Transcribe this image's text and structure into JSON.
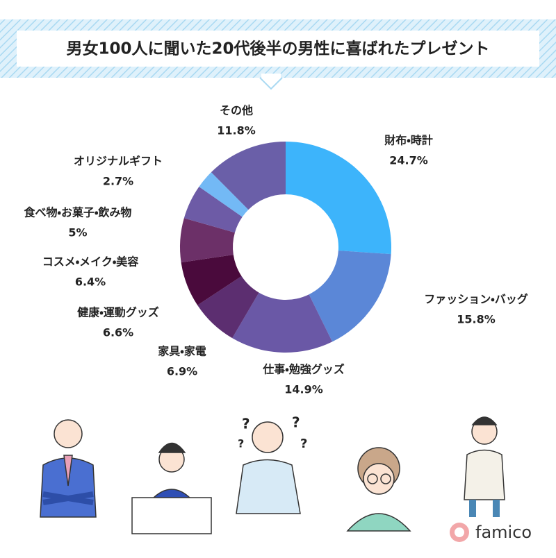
{
  "chart_data": {
    "type": "donut",
    "title": "男女100人に聞いた20代後半の男性に喜ばれたプレゼント",
    "categories": [
      "財布・時計",
      "ファッション・バッグ",
      "仕事・勉強グッズ",
      "家具・家電",
      "健康・運動グッズ",
      "コスメ・メイク・美容",
      "食べ物・お菓子・飲み物",
      "オリジナルギフト",
      "その他"
    ],
    "values": [
      24.7,
      15.8,
      14.9,
      6.9,
      6.6,
      6.4,
      5,
      2.7,
      11.8
    ],
    "value_labels": [
      "24.7%",
      "15.8%",
      "14.9%",
      "6.9%",
      "6.6%",
      "6.4%",
      "5%",
      "2.7%",
      "11.8%"
    ],
    "colors": [
      "#3db4fb",
      "#5b87d7",
      "#6a58a6",
      "#5c2e70",
      "#4a0a3c",
      "#6c3068",
      "#6d5ba6",
      "#73b9f5",
      "#6a5fa8"
    ]
  },
  "brand": {
    "logo": "famico"
  }
}
